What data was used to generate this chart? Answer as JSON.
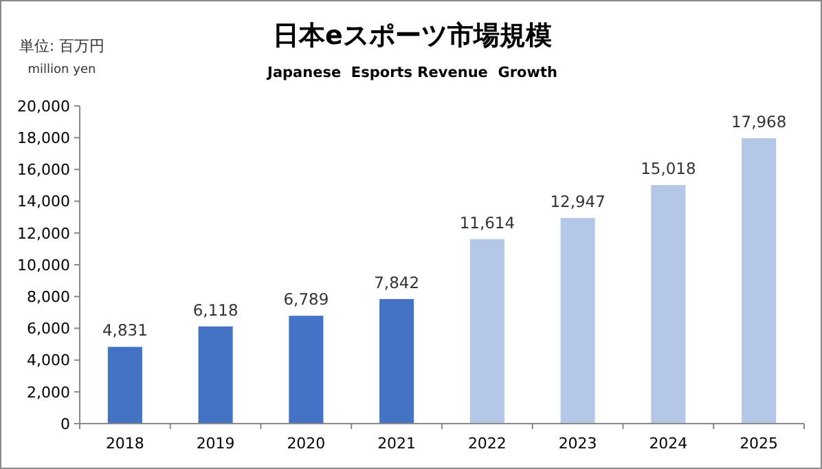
{
  "chart_data": {
    "type": "bar",
    "title": "日本eスポーツ市場規模",
    "subtitle": "Japanese  Esports Revenue  Growth",
    "annotations": [
      "単位: 百万円",
      "million yen"
    ],
    "categories": [
      "2018",
      "2019",
      "2020",
      "2021",
      "2022",
      "2023",
      "2024",
      "2025"
    ],
    "values": [
      4831,
      6118,
      6789,
      7842,
      11614,
      12947,
      15018,
      17968
    ],
    "colors": [
      "#4472c4",
      "#4472c4",
      "#4472c4",
      "#4472c4",
      "#b4c7e7",
      "#b4c7e7",
      "#b4c7e7",
      "#b4c7e7"
    ],
    "value_labels": [
      "4,831",
      "6,118",
      "6,789",
      "7,842",
      "11,614",
      "12,947",
      "15,018",
      "17,968"
    ],
    "ylim": [
      0,
      20000
    ],
    "yticks": [
      {
        "value": 0,
        "label": "0"
      },
      {
        "value": 2000,
        "label": "2,000"
      },
      {
        "value": 4000,
        "label": "4,000"
      },
      {
        "value": 6000,
        "label": "6,000"
      },
      {
        "value": 8000,
        "label": "8,000"
      },
      {
        "value": 10000,
        "label": "10,000"
      },
      {
        "value": 12000,
        "label": "12,000"
      },
      {
        "value": 14000,
        "label": "14,000"
      },
      {
        "value": 16000,
        "label": "16,000"
      },
      {
        "value": 18000,
        "label": "18,000"
      },
      {
        "value": 20000,
        "label": "20,000"
      }
    ],
    "grid": false
  }
}
